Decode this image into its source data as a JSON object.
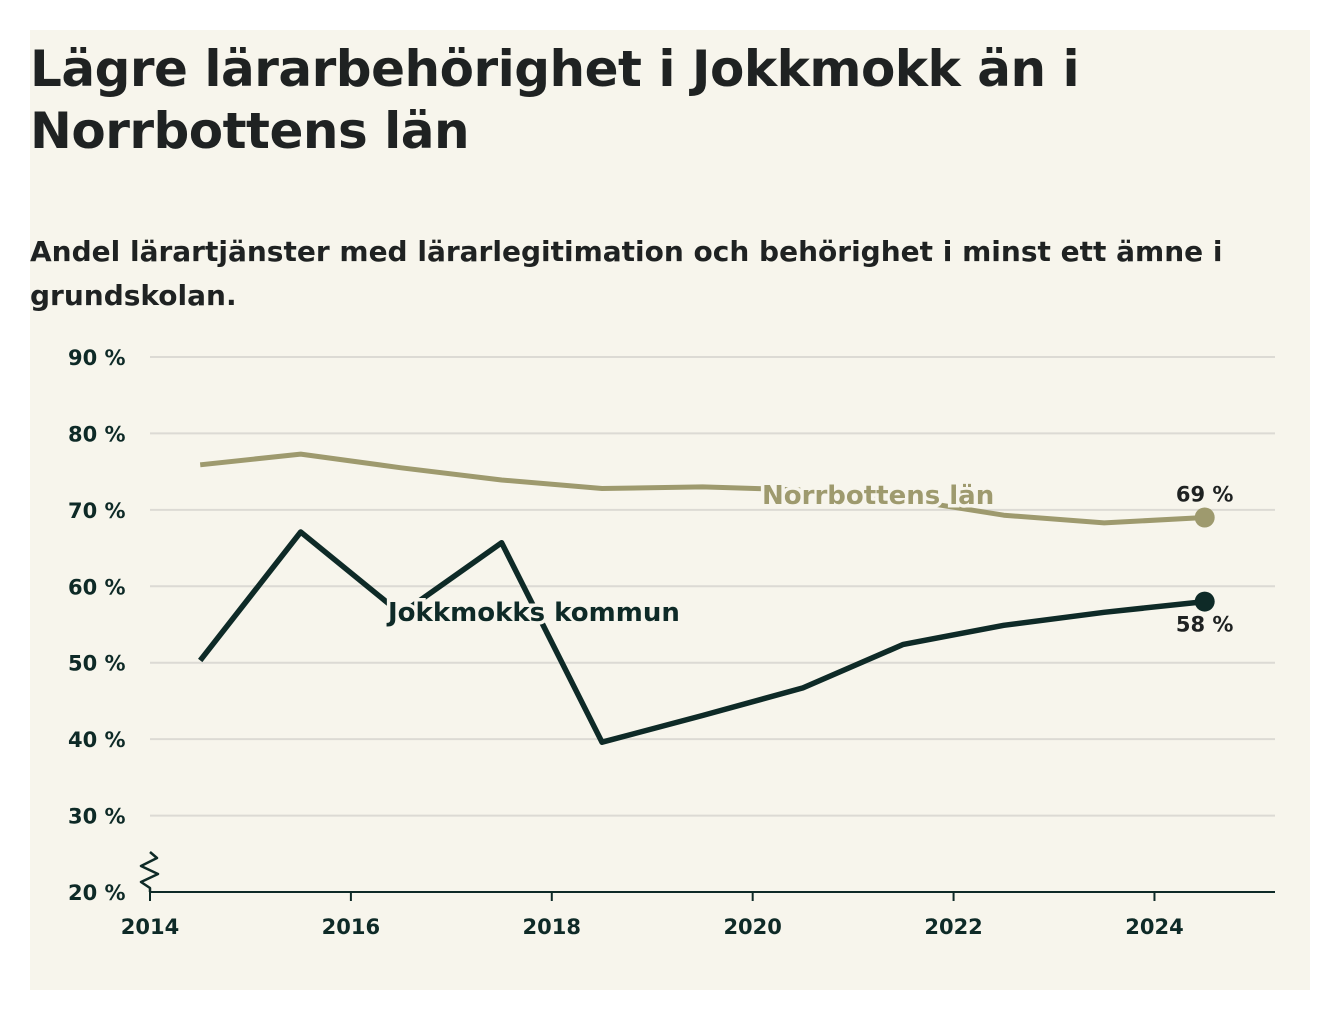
{
  "title": "Lägre lärarbehörighet i Jokkmokk än i Norrbottens län",
  "subtitle": "Andel lärartjänster med lärarlegitimation och behörighet i minst ett ämne i grundskolan.",
  "colors": {
    "background": "#f7f5ec",
    "norrbotten": "#9e9a6e",
    "jokkmokk": "#0e2a27",
    "grid": "#dcdad4"
  },
  "chart_data": {
    "type": "line",
    "title": "Lägre lärarbehörighet i Jokkmokk än i Norrbottens län",
    "subtitle": "Andel lärartjänster med lärarlegitimation och behörighet i minst ett ämne i grundskolan.",
    "xlim": [
      2014,
      2025.2
    ],
    "ylim": [
      20,
      90
    ],
    "x_ticks": [
      2014,
      2016,
      2018,
      2020,
      2022,
      2024
    ],
    "x_tick_labels": [
      "2014",
      "2016",
      "2018",
      "2020",
      "2022",
      "2024"
    ],
    "y_ticks": [
      20,
      30,
      40,
      50,
      60,
      70,
      80,
      90
    ],
    "y_tick_labels": [
      "20 %",
      "30 %",
      "40 %",
      "50 %",
      "60 %",
      "70 %",
      "80 %",
      "90 %"
    ],
    "grid": true,
    "axis_break": true,
    "x": [
      2014.5,
      2015.5,
      2016.5,
      2017.5,
      2018.5,
      2019.5,
      2020.5,
      2021.5,
      2022.5,
      2023.5,
      2024.5
    ],
    "series": [
      {
        "name": "Norrbottens län",
        "color": "#9e9a6e",
        "values": [
          75.9,
          77.3,
          75.5,
          73.9,
          72.8,
          73.0,
          72.6,
          71.4,
          69.3,
          68.3,
          69.0
        ],
        "end_label": "69 %"
      },
      {
        "name": "Jokkmokks kommun",
        "color": "#0e2a27",
        "values": [
          50.3,
          67.1,
          56.4,
          65.7,
          39.6,
          43.1,
          46.7,
          52.4,
          54.9,
          56.6,
          58.0
        ],
        "end_label": "58 %"
      }
    ]
  }
}
